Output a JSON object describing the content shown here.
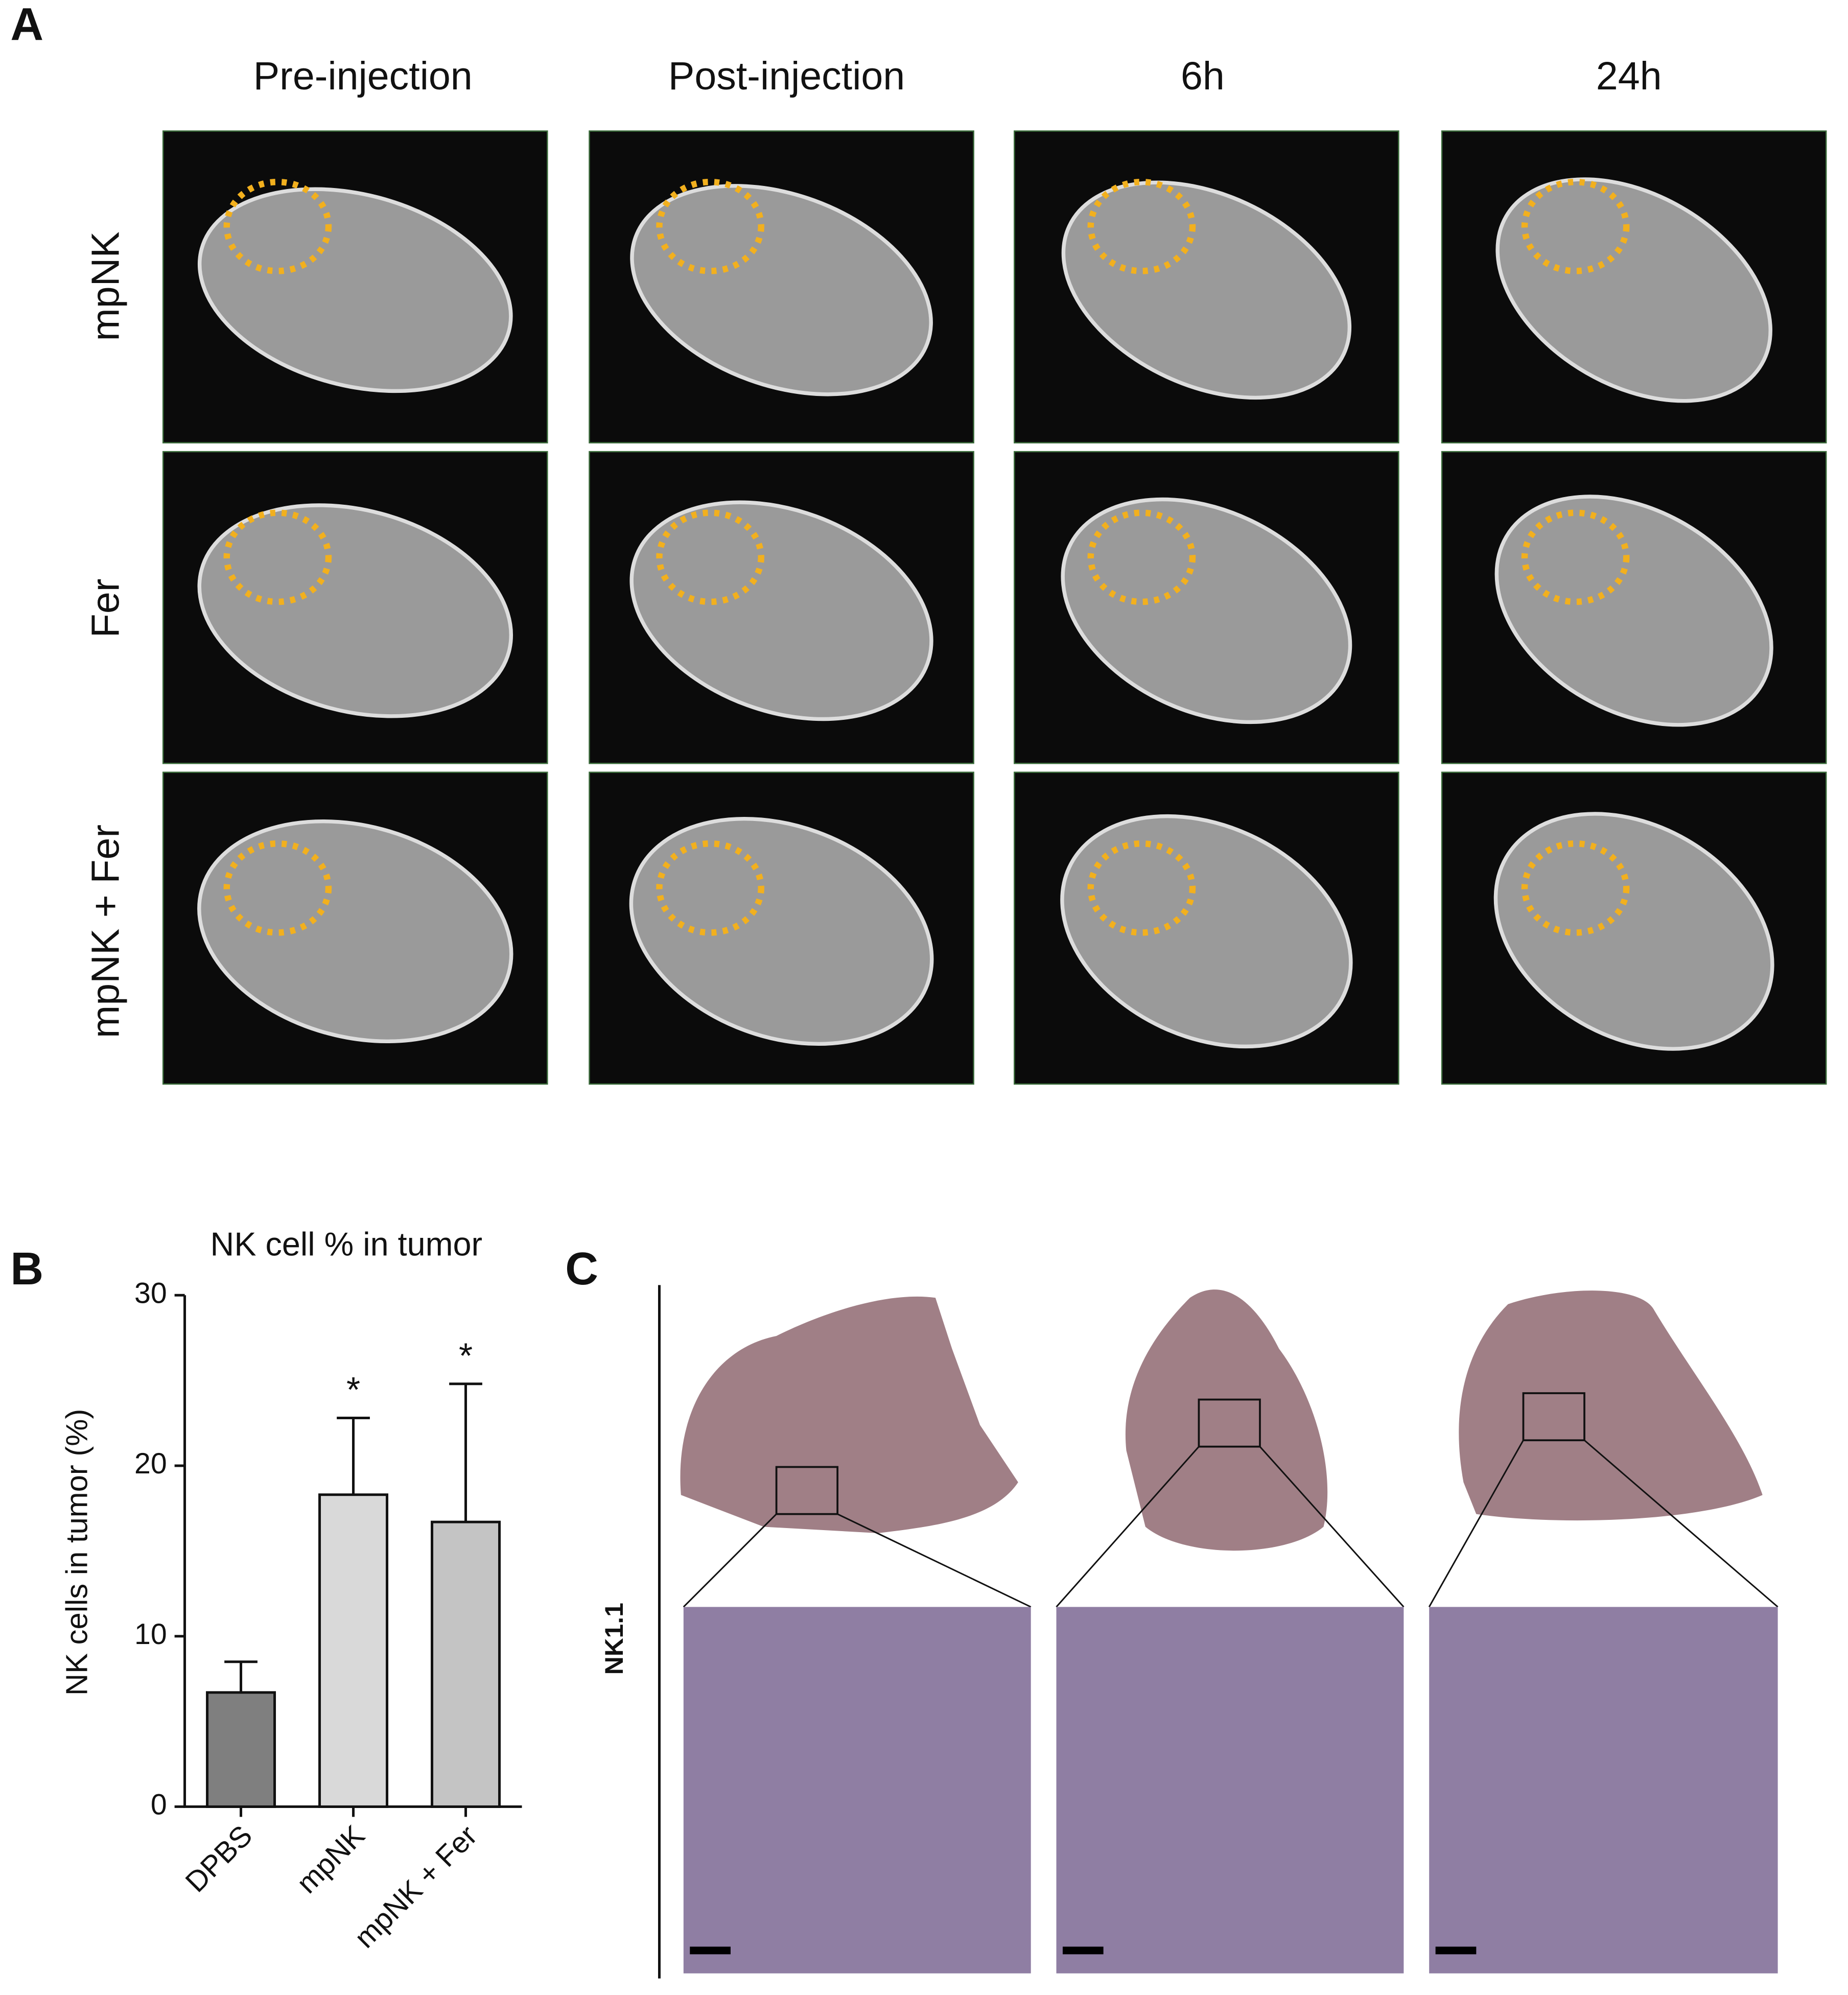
{
  "panel_a": {
    "label": "A",
    "columns": [
      "Pre-injection",
      "Post-injection",
      "6h",
      "24h"
    ],
    "rows": [
      "mpNK",
      "Fer",
      "mpNK + Fer"
    ]
  },
  "chart_data": {
    "type": "bar",
    "panel_label": "B",
    "title": "NK cell % in tumor",
    "y_label": "NK cells in tumor (%)",
    "categories": [
      "DPBS",
      "mpNK",
      "mpNK + Fer"
    ],
    "values": [
      6.7,
      18.3,
      16.7
    ],
    "errors": [
      1.8,
      4.5,
      8.1
    ],
    "annotations": [
      null,
      "*",
      "*"
    ],
    "colors": [
      "#7f7f7f",
      "#d9d9d9",
      "#c4c4c4"
    ],
    "ylim": [
      0,
      30
    ],
    "yticks": [
      0,
      10,
      20,
      30
    ]
  },
  "panel_c": {
    "label": "C",
    "row_label": "NK1.1"
  }
}
